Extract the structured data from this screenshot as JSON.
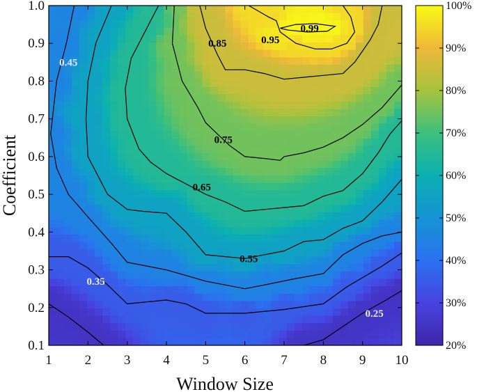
{
  "chart_data": {
    "type": "heatmap",
    "subtype": "filled-contour",
    "xlabel": "Window Size",
    "ylabel": "Coefficient",
    "xlim": [
      1,
      10
    ],
    "ylim": [
      0.1,
      1.0
    ],
    "x_ticks": [
      "1",
      "2",
      "3",
      "4",
      "5",
      "6",
      "7",
      "8",
      "9",
      "10"
    ],
    "y_ticks": [
      "0.1",
      "0.2",
      "0.3",
      "0.4",
      "0.5",
      "0.6",
      "0.7",
      "0.8",
      "0.9",
      "1.0"
    ],
    "colorbar": {
      "min": 0.2,
      "max": 1.0,
      "tick_labels": [
        "20%",
        "30%",
        "40%",
        "50%",
        "60%",
        "70%",
        "80%",
        "90%",
        "100%"
      ],
      "colormap": "parula-like",
      "colors": [
        "#3e26a8",
        "#4743e0",
        "#2a72f0",
        "#1594d4",
        "#0bb0b0",
        "#3cc07c",
        "#a6c33e",
        "#eeb83a",
        "#f9fb15"
      ]
    },
    "grid": false,
    "contour_lines": [
      {
        "level": 0.25,
        "label": "0.25",
        "label_color": "#e8e8ff",
        "points": [
          [
            2.4,
            0.1
          ],
          [
            2.0,
            0.135
          ],
          [
            1.5,
            0.175
          ],
          [
            1.0,
            0.21
          ]
        ]
      },
      {
        "level": 0.25,
        "label": "",
        "label_color": "#e8e8ff",
        "points": [
          [
            7.5,
            0.1
          ],
          [
            8.0,
            0.115
          ],
          [
            8.5,
            0.15
          ],
          [
            9.0,
            0.185
          ],
          [
            9.6,
            0.22
          ],
          [
            10.0,
            0.245
          ]
        ]
      },
      {
        "level": 0.35,
        "label": "0.35",
        "label_color": "#e8e8ff",
        "points": [
          [
            1.0,
            0.335
          ],
          [
            1.5,
            0.335
          ],
          [
            2.0,
            0.305
          ],
          [
            2.5,
            0.26
          ],
          [
            3.0,
            0.21
          ],
          [
            4.0,
            0.22
          ],
          [
            4.5,
            0.21
          ],
          [
            5.0,
            0.185
          ],
          [
            6.0,
            0.185
          ],
          [
            7.0,
            0.195
          ],
          [
            8.0,
            0.21
          ],
          [
            8.6,
            0.255
          ],
          [
            9.5,
            0.31
          ],
          [
            10.0,
            0.345
          ]
        ]
      },
      {
        "level": 0.45,
        "label": "0.45",
        "label_color": "#e8e8ff",
        "points": [
          [
            1.65,
            1.0
          ],
          [
            1.45,
            0.9
          ],
          [
            1.2,
            0.8
          ],
          [
            1.05,
            0.66
          ],
          [
            1.2,
            0.57
          ],
          [
            1.5,
            0.5
          ],
          [
            2.0,
            0.44
          ],
          [
            2.6,
            0.37
          ],
          [
            3.0,
            0.32
          ],
          [
            4.0,
            0.3
          ],
          [
            5.0,
            0.27
          ],
          [
            6.0,
            0.25
          ],
          [
            6.5,
            0.26
          ],
          [
            7.2,
            0.275
          ],
          [
            8.0,
            0.29
          ],
          [
            8.5,
            0.34
          ],
          [
            9.0,
            0.37
          ],
          [
            9.5,
            0.39
          ],
          [
            10.0,
            0.4
          ]
        ]
      },
      {
        "level": 0.55,
        "label": "0.55",
        "label_color": "#000000",
        "points": [
          [
            2.6,
            1.0
          ],
          [
            2.2,
            0.9
          ],
          [
            2.0,
            0.8
          ],
          [
            1.95,
            0.7
          ],
          [
            2.0,
            0.6
          ],
          [
            2.5,
            0.5
          ],
          [
            3.0,
            0.46
          ],
          [
            3.4,
            0.455
          ],
          [
            4.0,
            0.45
          ],
          [
            4.5,
            0.4
          ],
          [
            5.0,
            0.34
          ],
          [
            6.0,
            0.33
          ],
          [
            7.0,
            0.35
          ],
          [
            7.5,
            0.375
          ],
          [
            8.0,
            0.38
          ],
          [
            8.5,
            0.41
          ],
          [
            9.0,
            0.43
          ],
          [
            9.5,
            0.48
          ],
          [
            10.0,
            0.54
          ]
        ]
      },
      {
        "level": 0.65,
        "label": "0.65",
        "label_color": "#000000",
        "points": [
          [
            3.8,
            1.0
          ],
          [
            3.5,
            0.94
          ],
          [
            3.1,
            0.86
          ],
          [
            2.95,
            0.78
          ],
          [
            3.0,
            0.7
          ],
          [
            3.3,
            0.62
          ],
          [
            3.6,
            0.585
          ],
          [
            4.0,
            0.555
          ],
          [
            5.0,
            0.5
          ],
          [
            5.5,
            0.48
          ],
          [
            6.0,
            0.455
          ],
          [
            6.5,
            0.46
          ],
          [
            7.0,
            0.465
          ],
          [
            7.5,
            0.47
          ],
          [
            8.0,
            0.495
          ],
          [
            8.5,
            0.51
          ],
          [
            9.0,
            0.555
          ],
          [
            9.4,
            0.61
          ],
          [
            9.7,
            0.66
          ],
          [
            10.0,
            0.695
          ]
        ]
      },
      {
        "level": 0.75,
        "label": "0.75",
        "label_color": "#000000",
        "points": [
          [
            4.2,
            1.0
          ],
          [
            4.15,
            0.9
          ],
          [
            4.4,
            0.8
          ],
          [
            4.8,
            0.73
          ],
          [
            5.0,
            0.69
          ],
          [
            5.3,
            0.66
          ],
          [
            5.6,
            0.63
          ],
          [
            6.0,
            0.6
          ],
          [
            6.5,
            0.595
          ],
          [
            6.9,
            0.59
          ],
          [
            7.0,
            0.6
          ],
          [
            7.5,
            0.61
          ],
          [
            8.0,
            0.625
          ],
          [
            8.5,
            0.65
          ],
          [
            9.0,
            0.685
          ],
          [
            9.5,
            0.73
          ],
          [
            10.0,
            0.79
          ]
        ]
      },
      {
        "level": 0.85,
        "label": "0.85",
        "label_color": "#000000",
        "points": [
          [
            4.85,
            1.0
          ],
          [
            5.0,
            0.94
          ],
          [
            5.3,
            0.87
          ],
          [
            5.5,
            0.83
          ],
          [
            6.0,
            0.83
          ],
          [
            6.5,
            0.82
          ],
          [
            7.0,
            0.805
          ],
          [
            7.5,
            0.81
          ],
          [
            8.0,
            0.815
          ],
          [
            8.5,
            0.82
          ],
          [
            8.8,
            0.85
          ],
          [
            9.0,
            0.88
          ],
          [
            9.2,
            0.91
          ],
          [
            9.4,
            0.95
          ],
          [
            9.5,
            1.0
          ]
        ]
      },
      {
        "level": 0.95,
        "label": "0.95",
        "label_color": "#000000",
        "points": [
          [
            6.1,
            1.0
          ],
          [
            6.6,
            0.97
          ],
          [
            6.8,
            0.96
          ],
          [
            6.9,
            0.93
          ],
          [
            7.3,
            0.9
          ],
          [
            7.8,
            0.885
          ],
          [
            8.2,
            0.885
          ],
          [
            8.6,
            0.9
          ],
          [
            8.8,
            0.93
          ],
          [
            8.7,
            0.97
          ],
          [
            8.5,
            1.0
          ]
        ]
      },
      {
        "level": 0.99,
        "label": "0.99",
        "label_color": "#000000",
        "points": [
          [
            6.9,
            0.94
          ],
          [
            7.3,
            0.95
          ],
          [
            7.8,
            0.952
          ],
          [
            8.3,
            0.945
          ],
          [
            8.1,
            0.932
          ],
          [
            7.6,
            0.93
          ],
          [
            7.1,
            0.935
          ],
          [
            6.9,
            0.94
          ]
        ]
      }
    ],
    "contour_labels": [
      {
        "text": "0.45",
        "x": 1.5,
        "y": 0.85,
        "color": "#e8e8ff"
      },
      {
        "text": "0.35",
        "x": 2.2,
        "y": 0.27,
        "color": "#e8e8ff"
      },
      {
        "text": "0.25",
        "x": 9.3,
        "y": 0.185,
        "color": "#e8e8ff"
      },
      {
        "text": "0.55",
        "x": 6.1,
        "y": 0.33,
        "color": "#000000"
      },
      {
        "text": "0.65",
        "x": 4.9,
        "y": 0.52,
        "color": "#000000"
      },
      {
        "text": "0.75",
        "x": 5.45,
        "y": 0.645,
        "color": "#000000"
      },
      {
        "text": "0.85",
        "x": 5.3,
        "y": 0.9,
        "color": "#000000"
      },
      {
        "text": "0.95",
        "x": 6.65,
        "y": 0.91,
        "color": "#000000"
      },
      {
        "text": "0.99",
        "x": 7.65,
        "y": 0.94,
        "color": "#000000"
      }
    ]
  }
}
